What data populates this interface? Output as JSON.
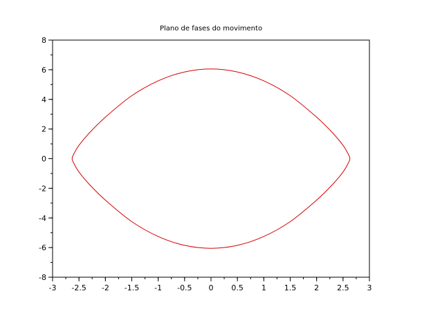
{
  "chart_data": {
    "type": "line",
    "title": "Plano de fases do movimento",
    "xlabel": "",
    "ylabel": "",
    "xlim": [
      -3,
      3
    ],
    "ylim": [
      -8,
      8
    ],
    "xticks": [
      -3,
      -2.5,
      -2,
      -1.5,
      -1,
      -0.5,
      0,
      0.5,
      1,
      1.5,
      2,
      2.5,
      3
    ],
    "yticks": [
      -8,
      -6,
      -4,
      -2,
      0,
      2,
      4,
      6,
      8
    ],
    "grid": false,
    "series": [
      {
        "color": "#d40000",
        "x": [
          0,
          0.5,
          1.0,
          1.5,
          2.0,
          2.3,
          2.5,
          2.6,
          2.63,
          2.6,
          2.5,
          2.3,
          2.0,
          1.5,
          1.0,
          0.5,
          0,
          -0.5,
          -1.0,
          -1.5,
          -2.0,
          -2.3,
          -2.5,
          -2.6,
          -2.63,
          -2.6,
          -2.5,
          -2.3,
          -2.0,
          -1.5,
          -1.0,
          -0.5,
          0
        ],
        "y": [
          6.05,
          5.85,
          5.25,
          4.25,
          2.8,
          1.75,
          0.9,
          0.3,
          0,
          -0.3,
          -0.9,
          -1.75,
          -2.8,
          -4.25,
          -5.25,
          -5.85,
          -6.05,
          -5.85,
          -5.25,
          -4.25,
          -2.8,
          -1.75,
          -0.9,
          -0.3,
          0,
          0.3,
          0.9,
          1.75,
          2.8,
          4.25,
          5.25,
          5.85,
          6.05
        ]
      }
    ]
  }
}
